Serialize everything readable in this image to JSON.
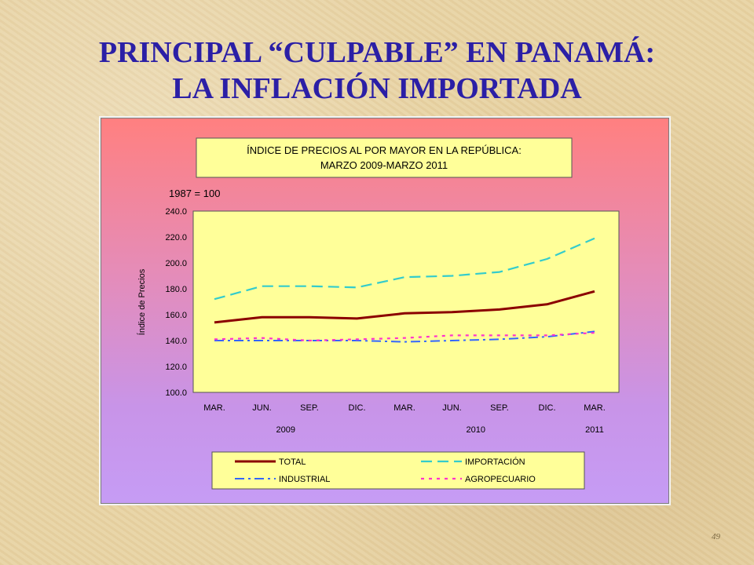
{
  "slide": {
    "title_line1": "PRINCIPAL “CULPABLE” EN PANAMÁ:",
    "title_line2": "LA INFLACIÓN IMPORTADA",
    "page_number": "49"
  },
  "colors": {
    "title": "#2b1fa6",
    "plot_bg": "#ffff99",
    "total": "#8b0000",
    "importacion": "#33cccc",
    "industrial": "#3366ff",
    "agropecuario": "#ff33cc"
  },
  "chart_data": {
    "type": "line",
    "title_line1": "ÍNDICE DE PRECIOS AL POR MAYOR EN LA REPÚBLICA:",
    "title_line2": "MARZO 2009-MARZO 2011",
    "base_note": "1987 = 100",
    "ylabel": "Índice de Precios",
    "ylim": [
      100,
      240
    ],
    "yticks": [
      "100.0",
      "120.0",
      "140.0",
      "160.0",
      "180.0",
      "200.0",
      "220.0",
      "240.0"
    ],
    "categories": [
      "MAR.",
      "JUN.",
      "SEP.",
      "DIC.",
      "MAR.",
      "JUN.",
      "SEP.",
      "DIC.",
      "MAR."
    ],
    "year_labels": [
      "2009",
      "2010",
      "2011"
    ],
    "grid": false,
    "legend_position": "bottom",
    "series": [
      {
        "name": "TOTAL",
        "style": "solid",
        "values": [
          154,
          158,
          158,
          157,
          161,
          162,
          164,
          168,
          178
        ]
      },
      {
        "name": "IMPORTACIÓN",
        "style": "dash",
        "values": [
          172,
          182,
          182,
          181,
          189,
          190,
          193,
          203,
          219
        ]
      },
      {
        "name": "INDUSTRIAL",
        "style": "dashdot",
        "values": [
          140,
          140,
          140,
          140,
          139,
          140,
          141,
          143,
          147
        ]
      },
      {
        "name": "AGROPECUARIO",
        "style": "dot",
        "values": [
          141,
          142,
          140,
          141,
          142,
          144,
          144,
          144,
          146
        ]
      }
    ]
  }
}
